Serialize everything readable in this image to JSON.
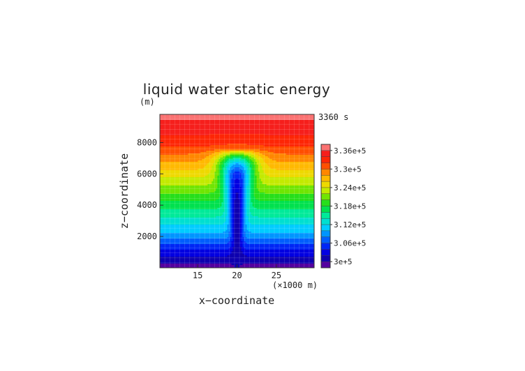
{
  "chart_data": {
    "type": "heatmap",
    "title": "liquid water static energy",
    "y_unit": "(m)",
    "x_unit": "(×1000 m)",
    "timestamp": "3360 s",
    "xlabel": "x−coordinate",
    "ylabel": "z−coordinate",
    "x_range": [
      10.2,
      29.8
    ],
    "y_range": [
      0,
      9800
    ],
    "x_ticks": [
      15,
      20,
      25
    ],
    "x_tick_labels": [
      "15",
      "20",
      "25"
    ],
    "y_ticks": [
      2000,
      4000,
      6000,
      8000
    ],
    "y_tick_labels": [
      "2000",
      "4000",
      "6000",
      "8000"
    ],
    "colorbar": {
      "min": 298000,
      "max": 338000,
      "step": 2000,
      "tick_values": [
        300000,
        306000,
        312000,
        318000,
        324000,
        330000,
        336000
      ],
      "tick_labels": [
        "3e+5",
        "3.06e+5",
        "3.12e+5",
        "3.18e+5",
        "3.24e+5",
        "3.3e+5",
        "3.36e+5"
      ]
    },
    "field_description": {
      "background_profile": [
        {
          "z": 0,
          "value": 299000
        },
        {
          "z": 1000,
          "value": 303000
        },
        {
          "z": 2000,
          "value": 309000
        },
        {
          "z": 3000,
          "value": 313000
        },
        {
          "z": 4000,
          "value": 317000
        },
        {
          "z": 5000,
          "value": 321000
        },
        {
          "z": 6000,
          "value": 325000
        },
        {
          "z": 7000,
          "value": 329000
        },
        {
          "z": 8000,
          "value": 333000
        },
        {
          "z": 9000,
          "value": 335000
        },
        {
          "z": 9800,
          "value": 337000
        }
      ],
      "plume_center_x": 20,
      "plume_top_z": 7600,
      "plume_core_value": 301000,
      "plume_base_value": 299000
    }
  }
}
